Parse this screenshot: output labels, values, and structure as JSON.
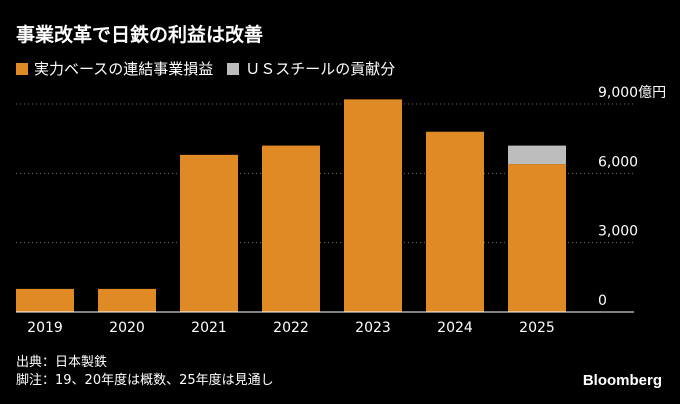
{
  "title": "事業改革で日鉄の利益は改善",
  "legend": [
    {
      "label": "実力ベースの連結事業損益",
      "color": "#E08A25"
    },
    {
      "label": "ＵＳスチールの貢献分",
      "color": "#BDBDBD"
    }
  ],
  "chart_data": {
    "type": "bar",
    "stacked": true,
    "categories": [
      "2019",
      "2020",
      "2021",
      "2022",
      "2023",
      "2024",
      "2025"
    ],
    "series": [
      {
        "name": "実力ベースの連結事業損益",
        "color": "#E08A25",
        "values": [
          1000,
          1000,
          6800,
          7200,
          9200,
          7800,
          6400
        ]
      },
      {
        "name": "ＵＳスチールの貢献分",
        "color": "#BDBDBD",
        "values": [
          0,
          0,
          0,
          0,
          0,
          0,
          800
        ]
      }
    ],
    "yticks": [
      {
        "value": 0,
        "label": "0"
      },
      {
        "value": 3000,
        "label": "3,000"
      },
      {
        "value": 6000,
        "label": "6,000"
      },
      {
        "value": 9000,
        "label": "9,000億円"
      }
    ],
    "ylim": [
      0,
      9000
    ],
    "grid": true
  },
  "footer": {
    "source": "出典：日本製鉄",
    "note": "脚注：19、20年度は概数、25年度は見通し"
  },
  "brand": "Bloomberg"
}
